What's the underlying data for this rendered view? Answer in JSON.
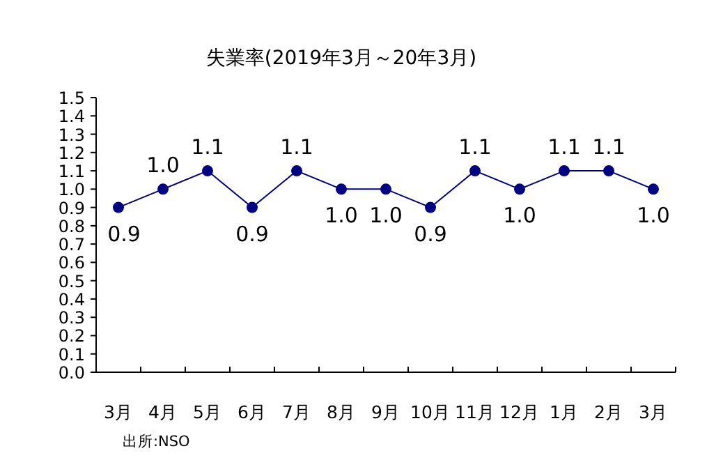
{
  "chart_data": {
    "type": "line",
    "title": "失業率(2019年3月～20年3月)",
    "categories": [
      "3月",
      "4月",
      "5月",
      "6月",
      "7月",
      "8月",
      "9月",
      "10月",
      "11月",
      "12月",
      "1月",
      "2月",
      "3月"
    ],
    "series": [
      {
        "color": "#000080",
        "values": [
          0.9,
          1.0,
          1.1,
          0.9,
          1.1,
          1.0,
          1.0,
          0.9,
          1.1,
          1.0,
          1.1,
          1.1,
          1.0
        ],
        "value_labels": [
          "0.9",
          "1.0",
          "1.1",
          "0.9",
          "1.1",
          "1.0",
          "1.0",
          "0.9",
          "1.1",
          "1.0",
          "1.1",
          "1.1",
          "1.0"
        ]
      }
    ],
    "ylim": [
      0,
      1.5
    ],
    "yticks": [
      {
        "value": 0,
        "label": "0.0"
      },
      0.1,
      0.2,
      0.3,
      0.4,
      0.5,
      0.6,
      0.7,
      0.8,
      0.9,
      {
        "value": 1,
        "label": "1.0"
      },
      1.1,
      1.2,
      1.3,
      1.4,
      1.5
    ],
    "marker": "circle",
    "grid": false,
    "annotations": [
      "出所:NSO"
    ]
  }
}
